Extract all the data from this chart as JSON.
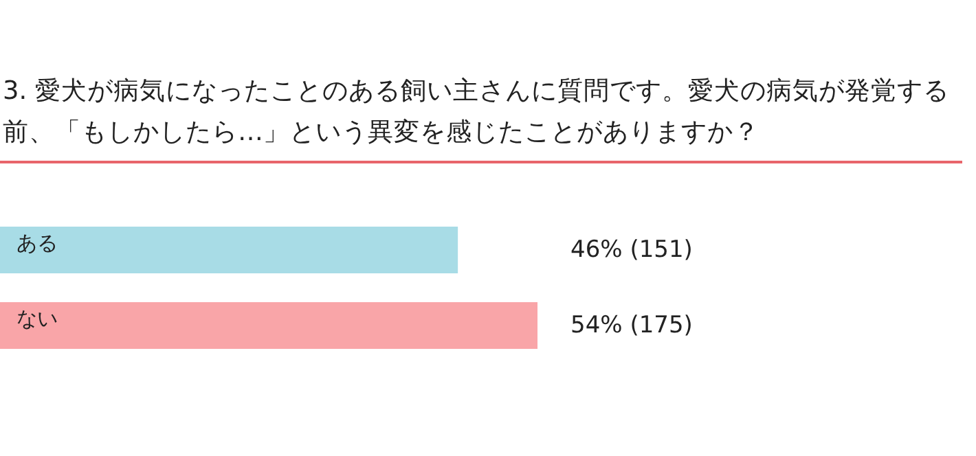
{
  "chart_data": {
    "type": "bar",
    "orientation": "horizontal",
    "title": "3. 愛犬が病気になったことのある飼い主さんに質問です。愛犬の病気が発覚する前、「もしかしたら…」という異変を感じたことがありますか？",
    "categories": [
      "ある",
      "ない"
    ],
    "values": [
      46,
      54
    ],
    "colors": [
      "#a8dce6",
      "#f9a5a8"
    ],
    "value_labels": [
      "46% (151)",
      "54% (175)"
    ]
  }
}
